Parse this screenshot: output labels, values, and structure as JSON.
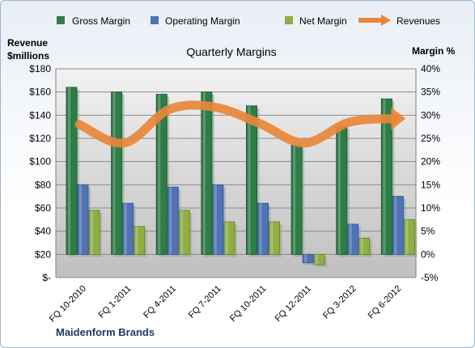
{
  "chart_data": {
    "type": "bar",
    "title": "Quarterly Margins",
    "footer": "Maidenform Brands",
    "left_axis": {
      "label_line1": "Revenue",
      "label_line2": "$millions",
      "ticks": [
        "$-",
        "$20",
        "$40",
        "$60",
        "$80",
        "$100",
        "$120",
        "$140",
        "$160",
        "$180"
      ],
      "range": [
        0,
        180
      ]
    },
    "right_axis": {
      "label": "Margin %",
      "ticks": [
        "-5%",
        "0%",
        "5%",
        "10%",
        "15%",
        "20%",
        "25%",
        "30%",
        "35%",
        "40%"
      ],
      "range": [
        -5,
        40
      ]
    },
    "categories": [
      "FQ 10-2010",
      "FQ 1-2011",
      "FQ 4-2011",
      "FQ 7-2011",
      "FQ 10-2011",
      "FQ 12-2011",
      "FQ 3-2012",
      "FQ 6-2012"
    ],
    "series": [
      {
        "name": "Gross Margin",
        "axis": "right",
        "values": [
          36,
          35,
          34.5,
          35,
          32,
          23.5,
          27.5,
          33.5
        ],
        "color": "#2e7d46"
      },
      {
        "name": "Operating Margin",
        "axis": "right",
        "values": [
          15,
          11,
          14.5,
          15,
          11,
          -1.8,
          6.5,
          12.5
        ],
        "color": "#4f73b3"
      },
      {
        "name": "Net Margin",
        "axis": "right",
        "values": [
          9.5,
          6,
          9.5,
          7,
          7,
          -2.2,
          3.5,
          7.5
        ],
        "color": "#8fae44"
      },
      {
        "name": "Revenues",
        "axis": "left",
        "type": "line",
        "values": [
          132,
          116,
          145,
          147,
          133,
          116,
          134,
          137
        ],
        "color": "#e8873a"
      }
    ],
    "legend": "top"
  }
}
